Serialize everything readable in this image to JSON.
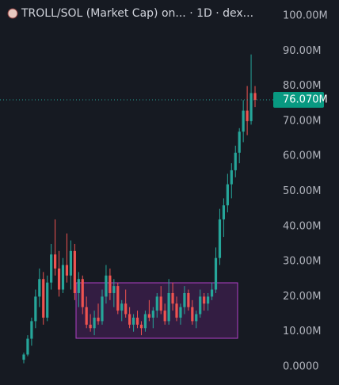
{
  "chart_data": {
    "type": "candlestick",
    "title": "TROLL/SOL (Market Cap) on... · 1D · dex...",
    "up_color": "#26a69a",
    "down_color": "#ef5350",
    "ylim": [
      0,
      100
    ],
    "yticks": [
      {
        "value": 0,
        "label": "0.0000"
      },
      {
        "value": 10,
        "label": "10.00M"
      },
      {
        "value": 20,
        "label": "20.00M"
      },
      {
        "value": 30,
        "label": "30.00M"
      },
      {
        "value": 40,
        "label": "40.00M"
      },
      {
        "value": 50,
        "label": "50.00M"
      },
      {
        "value": 60,
        "label": "60.00M"
      },
      {
        "value": 70,
        "label": "70.00M"
      },
      {
        "value": 80,
        "label": "80.00M"
      },
      {
        "value": 90,
        "label": "90.00M"
      },
      {
        "value": 100,
        "label": "100.00M"
      }
    ],
    "last_price": {
      "value": 76.07,
      "label": "76.070M"
    },
    "open": [
      2,
      3.5,
      8,
      13,
      20,
      25,
      14,
      24,
      32,
      28,
      22,
      29,
      26,
      33,
      21,
      25,
      17,
      12,
      11,
      14,
      13,
      20,
      26,
      21,
      23,
      16,
      18,
      15,
      12,
      14,
      12,
      11,
      15,
      14,
      16,
      20,
      16,
      13,
      21,
      18,
      14,
      17,
      21,
      17,
      13,
      15,
      20,
      18,
      20,
      22,
      31,
      42,
      46,
      52,
      56,
      61,
      67,
      73,
      70,
      78
    ],
    "high": [
      4,
      9,
      14,
      22,
      28,
      27,
      26,
      35,
      42,
      33,
      31,
      38,
      36,
      35,
      27,
      26,
      20,
      15,
      16,
      18,
      22,
      29,
      28,
      25,
      24,
      19,
      22,
      17,
      15,
      16,
      13,
      16,
      19,
      17,
      21,
      23,
      18,
      25,
      24,
      20,
      18,
      23,
      22,
      19,
      16,
      22,
      21,
      21,
      24,
      34,
      45,
      48,
      55,
      58,
      63,
      68,
      76,
      80,
      89,
      80
    ],
    "low": [
      1,
      3,
      6,
      11,
      17,
      12,
      13,
      22,
      26,
      20,
      21,
      24,
      22,
      19,
      17,
      15,
      11,
      10,
      9,
      12,
      12,
      18,
      19,
      17,
      15,
      13,
      14,
      11,
      10,
      11,
      9,
      10,
      13,
      11,
      14,
      15,
      12,
      12,
      16,
      13,
      12,
      15,
      16,
      12,
      11,
      14,
      16,
      16,
      19,
      21,
      29,
      37,
      44,
      48,
      54,
      58,
      64,
      66,
      69,
      74
    ],
    "close": [
      3.5,
      8,
      13,
      20,
      25,
      14,
      24,
      32,
      28,
      22,
      29,
      26,
      33,
      21,
      25,
      17,
      12,
      11,
      14,
      13,
      20,
      26,
      21,
      23,
      16,
      18,
      15,
      12,
      14,
      12,
      11,
      15,
      14,
      16,
      20,
      16,
      13,
      21,
      18,
      14,
      17,
      21,
      17,
      13,
      15,
      20,
      18,
      20,
      22,
      31,
      42,
      46,
      52,
      56,
      61,
      67,
      73,
      70,
      78,
      76.07
    ]
  }
}
